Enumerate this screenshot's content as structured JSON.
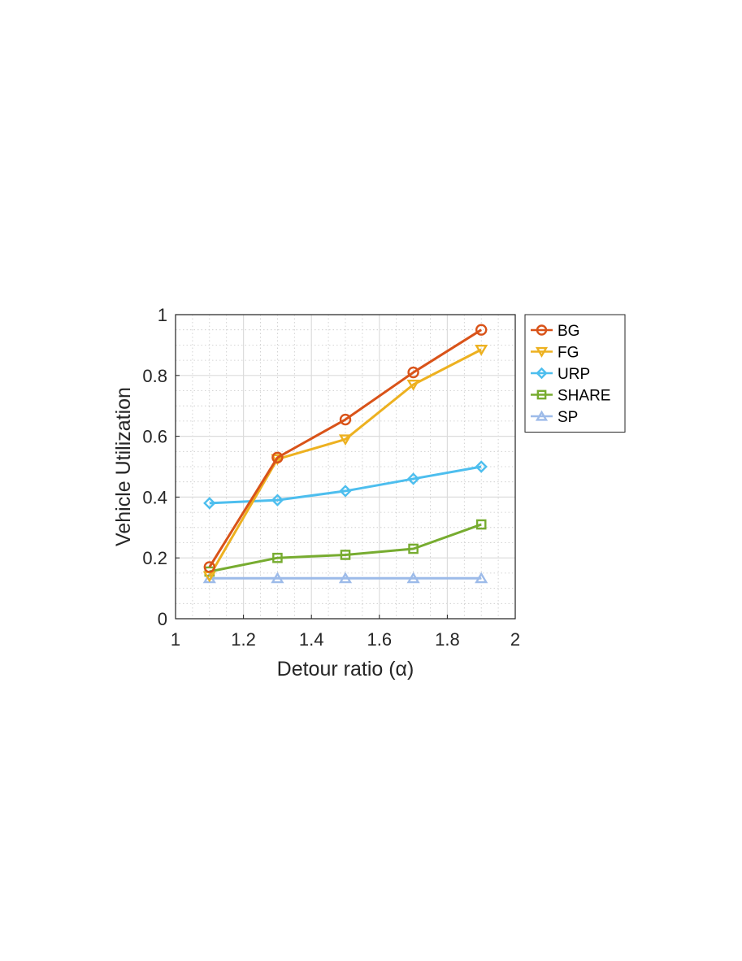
{
  "chart_data": {
    "type": "line",
    "xlabel": "Detour ratio (α)",
    "ylabel": "Vehicle Utilization",
    "xlim": [
      1,
      2
    ],
    "ylim": [
      0,
      1
    ],
    "xticks": [
      1,
      1.2,
      1.4,
      1.6,
      1.8,
      2
    ],
    "yticks": [
      0,
      0.2,
      0.4,
      0.6,
      0.8,
      1
    ],
    "xtick_labels": [
      "1",
      "1.2",
      "1.4",
      "1.6",
      "1.8",
      "2"
    ],
    "ytick_labels": [
      "0",
      "0.2",
      "0.4",
      "0.6",
      "0.8",
      "1"
    ],
    "grid": true,
    "minor_grid": true,
    "legend_position": "outside-top-right",
    "x": [
      1.1,
      1.3,
      1.5,
      1.7,
      1.9
    ],
    "series": [
      {
        "name": "BG",
        "values": [
          0.17,
          0.53,
          0.655,
          0.81,
          0.95
        ],
        "color": "#D95319",
        "marker": "circle"
      },
      {
        "name": "FG",
        "values": [
          0.14,
          0.525,
          0.59,
          0.77,
          0.885
        ],
        "color": "#EDB120",
        "marker": "triangle-down"
      },
      {
        "name": "URP",
        "values": [
          0.38,
          0.39,
          0.42,
          0.46,
          0.5
        ],
        "color": "#4DBEEE",
        "marker": "diamond"
      },
      {
        "name": "SHARE",
        "values": [
          0.155,
          0.2,
          0.21,
          0.23,
          0.31
        ],
        "color": "#77AC30",
        "marker": "square"
      },
      {
        "name": "SP",
        "values": [
          0.133,
          0.133,
          0.133,
          0.133,
          0.133
        ],
        "color": "#9DBBE9",
        "marker": "triangle-up"
      }
    ]
  }
}
